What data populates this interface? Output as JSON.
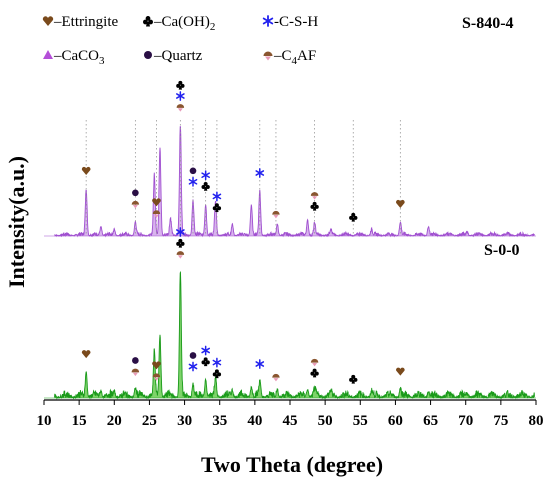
{
  "chart_data": {
    "type": "line",
    "xlabel": "Two Theta (degree)",
    "ylabel": "Intensity(a.u.)",
    "xlim": [
      10,
      80
    ],
    "x_ticks": [
      10,
      15,
      20,
      25,
      30,
      35,
      40,
      45,
      50,
      55,
      60,
      65,
      70,
      75,
      80
    ],
    "colors": {
      "ettringite": "#7a4a1c",
      "caoh2": "#000000",
      "csh": "#2222ee",
      "caco3": "#b44fd8",
      "quartz": "#2a0f45",
      "c4af": "#8a5630",
      "series_top_fill": "#d9b3ee",
      "series_top_line": "#a050d0",
      "series_bottom_fill": "#7ed36a",
      "series_bottom_line": "#1a9a1a"
    },
    "legend": [
      {
        "key": "ettringite",
        "icon": "heart-icon",
        "label": "–Ettringite"
      },
      {
        "key": "caoh2",
        "icon": "club-icon",
        "label": "–Ca(OH)",
        "sub": "2"
      },
      {
        "key": "csh",
        "icon": "asterisk-icon",
        "label": "-C-S-H"
      },
      {
        "key": "caco3",
        "icon": "triangle-icon",
        "label": "–CaCO",
        "sub": "3"
      },
      {
        "key": "quartz",
        "icon": "dot-icon",
        "label": "–Quartz"
      },
      {
        "key": "c4af",
        "icon": "bell-icon",
        "label": "–C",
        "sub": "4",
        "label2": "AF"
      }
    ],
    "series": [
      {
        "name": "S-840-4",
        "peaks": [
          [
            16.0,
            0.42
          ],
          [
            18.1,
            0.08
          ],
          [
            20.0,
            0.05
          ],
          [
            23.0,
            0.12
          ],
          [
            25.7,
            0.55
          ],
          [
            26.5,
            0.8
          ],
          [
            28.0,
            0.15
          ],
          [
            29.4,
            1.0
          ],
          [
            31.2,
            0.32
          ],
          [
            33.0,
            0.28
          ],
          [
            34.4,
            0.3
          ],
          [
            36.8,
            0.1
          ],
          [
            39.5,
            0.28
          ],
          [
            40.7,
            0.4
          ],
          [
            43.2,
            0.1
          ],
          [
            47.5,
            0.14
          ],
          [
            48.5,
            0.1
          ],
          [
            50.8,
            0.05
          ],
          [
            56.6,
            0.05
          ],
          [
            60.7,
            0.12
          ],
          [
            64.7,
            0.08
          ],
          [
            70.2,
            0.03
          ]
        ]
      },
      {
        "name": "S-0-0",
        "peaks": [
          [
            16.0,
            0.2
          ],
          [
            18.1,
            0.05
          ],
          [
            20.0,
            0.04
          ],
          [
            23.0,
            0.06
          ],
          [
            25.7,
            0.35
          ],
          [
            26.5,
            0.5
          ],
          [
            29.4,
            1.0
          ],
          [
            31.2,
            0.1
          ],
          [
            33.0,
            0.14
          ],
          [
            34.4,
            0.15
          ],
          [
            36.8,
            0.05
          ],
          [
            39.5,
            0.08
          ],
          [
            40.7,
            0.12
          ],
          [
            43.2,
            0.06
          ],
          [
            47.5,
            0.06
          ],
          [
            48.5,
            0.05
          ],
          [
            50.8,
            0.03
          ],
          [
            56.6,
            0.04
          ],
          [
            60.7,
            0.06
          ],
          [
            64.7,
            0.04
          ],
          [
            70.2,
            0.02
          ]
        ]
      }
    ],
    "markers": [
      {
        "series": "S-840-4",
        "theta": 16.0,
        "types": [
          "ettringite"
        ]
      },
      {
        "series": "S-840-4",
        "theta": 23.0,
        "types": [
          "quartz",
          "c4af"
        ]
      },
      {
        "series": "S-840-4",
        "theta": 26.0,
        "types": [
          "ettringite",
          "c4af"
        ]
      },
      {
        "series": "S-840-4",
        "theta": 29.4,
        "types": [
          "caoh2",
          "csh",
          "c4af"
        ]
      },
      {
        "series": "S-840-4",
        "theta": 31.2,
        "types": [
          "quartz",
          "csh"
        ]
      },
      {
        "series": "S-840-4",
        "theta": 33.0,
        "types": [
          "csh",
          "caoh2"
        ]
      },
      {
        "series": "S-840-4",
        "theta": 34.6,
        "types": [
          "csh",
          "caoh2"
        ]
      },
      {
        "series": "S-840-4",
        "theta": 40.7,
        "types": [
          "csh"
        ]
      },
      {
        "series": "S-840-4",
        "theta": 43.0,
        "types": [
          "c4af"
        ]
      },
      {
        "series": "S-840-4",
        "theta": 48.5,
        "types": [
          "c4af",
          "caoh2"
        ]
      },
      {
        "series": "S-840-4",
        "theta": 54.0,
        "types": [
          "caoh2"
        ]
      },
      {
        "series": "S-840-4",
        "theta": 60.7,
        "types": [
          "ettringite"
        ]
      },
      {
        "series": "S-0-0",
        "theta": 16.0,
        "types": [
          "ettringite"
        ]
      },
      {
        "series": "S-0-0",
        "theta": 23.0,
        "types": [
          "quartz",
          "c4af"
        ]
      },
      {
        "series": "S-0-0",
        "theta": 26.0,
        "types": [
          "ettringite",
          "c4af"
        ]
      },
      {
        "series": "S-0-0",
        "theta": 29.4,
        "types": [
          "csh",
          "caoh2",
          "c4af"
        ]
      },
      {
        "series": "S-0-0",
        "theta": 31.2,
        "types": [
          "quartz",
          "csh"
        ]
      },
      {
        "series": "S-0-0",
        "theta": 33.0,
        "types": [
          "csh",
          "caoh2"
        ]
      },
      {
        "series": "S-0-0",
        "theta": 34.6,
        "types": [
          "csh",
          "caoh2"
        ]
      },
      {
        "series": "S-0-0",
        "theta": 40.7,
        "types": [
          "csh"
        ]
      },
      {
        "series": "S-0-0",
        "theta": 43.0,
        "types": [
          "c4af"
        ]
      },
      {
        "series": "S-0-0",
        "theta": 48.5,
        "types": [
          "c4af",
          "caoh2"
        ]
      },
      {
        "series": "S-0-0",
        "theta": 54.0,
        "types": [
          "caoh2"
        ]
      },
      {
        "series": "S-0-0",
        "theta": 60.7,
        "types": [
          "ettringite"
        ]
      }
    ],
    "grid": "dotted vertical reference lines at marked peaks"
  }
}
